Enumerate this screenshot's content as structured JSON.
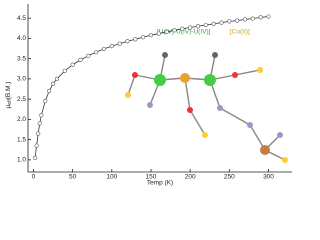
{
  "chart_data": {
    "type": "scatter",
    "annotations": [
      "[U(IV)-U(IV)-U(IV)]",
      "[Co(II)]"
    ],
    "xlabel": "Temp (K)",
    "ylabel": {
      "symbol": "μ",
      "subscript": "eff",
      "unit": "(B.M.)"
    },
    "x": [
      2,
      4,
      6,
      8,
      10,
      15,
      20,
      25,
      30,
      40,
      50,
      60,
      70,
      80,
      90,
      100,
      110,
      120,
      130,
      140,
      150,
      160,
      170,
      180,
      190,
      200,
      210,
      220,
      230,
      240,
      250,
      260,
      270,
      280,
      290,
      300
    ],
    "series": [
      {
        "color": "#555555",
        "values": [
          1.05,
          1.35,
          1.65,
          1.9,
          2.1,
          2.45,
          2.7,
          2.88,
          3.0,
          3.2,
          3.35,
          3.47,
          3.57,
          3.66,
          3.74,
          3.81,
          3.87,
          3.93,
          3.98,
          4.03,
          4.08,
          4.12,
          4.16,
          4.2,
          4.24,
          4.27,
          4.3,
          4.33,
          4.36,
          4.39,
          4.42,
          4.44,
          4.47,
          4.49,
          4.52,
          4.54
        ]
      }
    ],
    "xlim": [
      -7,
      330
    ],
    "ylim": [
      0.7,
      4.85
    ],
    "xticks": [
      0,
      50,
      100,
      150,
      200,
      250,
      300
    ],
    "yticks": [
      {
        "value": 1,
        "label": "1.0"
      },
      1.5,
      {
        "value": 2,
        "label": "2.0"
      },
      2.5,
      {
        "value": 3,
        "label": "3.0"
      },
      3.5,
      {
        "value": 4,
        "label": "4.0"
      },
      4.5
    ]
  }
}
